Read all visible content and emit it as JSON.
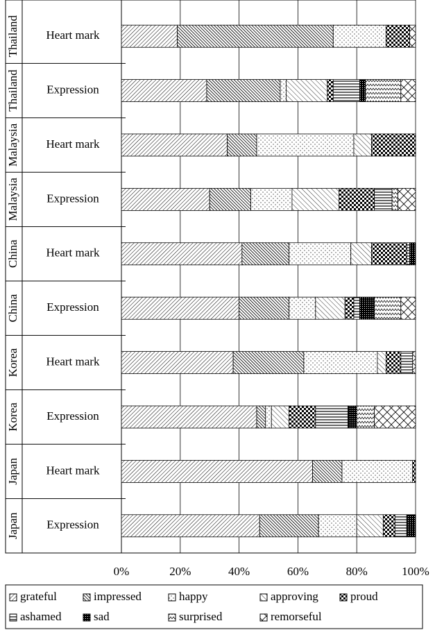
{
  "chart_data": {
    "type": "stacked-barh",
    "groups": [
      "Thailand",
      "Thailand",
      "Malaysia",
      "Malaysia",
      "China",
      "China",
      "Korea",
      "Korea",
      "Japan",
      "Japan"
    ],
    "categories": [
      "Heart mark",
      "Expression",
      "Heart mark",
      "Expression",
      "Heart mark",
      "Expression",
      "Heart mark",
      "Expression",
      "Heart mark",
      "Expression"
    ],
    "series": [
      {
        "name": "grateful",
        "color": "#000000",
        "pattern": "grateful",
        "values": [
          19,
          29,
          36,
          30,
          41,
          40,
          38,
          46,
          65,
          47
        ]
      },
      {
        "name": "impressed",
        "color": "#000000",
        "pattern": "impressed",
        "values": [
          53,
          25,
          10,
          14,
          16,
          17,
          24,
          3,
          10,
          20
        ]
      },
      {
        "name": "happy",
        "color": "#000000",
        "pattern": "happy",
        "values": [
          18,
          2,
          33,
          14,
          21,
          9,
          25,
          2,
          24,
          13
        ]
      },
      {
        "name": "approving",
        "color": "#000000",
        "pattern": "approving",
        "values": [
          0,
          14,
          6,
          16,
          7,
          10,
          3,
          6,
          0,
          9
        ]
      },
      {
        "name": "proud",
        "color": "#000000",
        "pattern": "proud",
        "values": [
          8,
          2,
          15,
          12,
          12,
          3,
          5,
          9,
          1,
          4
        ]
      },
      {
        "name": "ashamed",
        "color": "#000000",
        "pattern": "ashamed",
        "values": [
          0,
          9,
          0,
          6,
          1,
          2,
          4,
          11,
          0,
          4
        ]
      },
      {
        "name": "sad",
        "color": "#000000",
        "pattern": "sad",
        "values": [
          0,
          2,
          0,
          0,
          2,
          5,
          0,
          3,
          0,
          3
        ]
      },
      {
        "name": "surprised",
        "color": "#000000",
        "pattern": "surprised",
        "values": [
          0,
          12,
          0,
          2,
          0,
          9,
          0,
          6,
          0,
          0
        ]
      },
      {
        "name": "remorseful",
        "color": "#000000",
        "pattern": "remorseful",
        "values": [
          2,
          5,
          0,
          6,
          0,
          5,
          1,
          14,
          0,
          0
        ]
      }
    ],
    "xlim": [
      0,
      100
    ],
    "xticks": [
      {
        "value": 0,
        "label": "0%"
      },
      {
        "value": 20,
        "label": "20%"
      },
      {
        "value": 40,
        "label": "40%"
      },
      {
        "value": 60,
        "label": "60%"
      },
      {
        "value": 80,
        "label": "80%"
      },
      {
        "value": 100,
        "label": "100%"
      }
    ],
    "grid": true
  }
}
